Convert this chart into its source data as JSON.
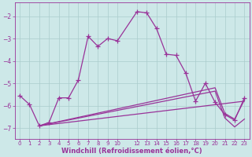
{
  "bg_color": "#cde8e8",
  "line_color": "#993399",
  "grid_color": "#aacccc",
  "xlabel": "Windchill (Refroidissement éolien,°C)",
  "xlabel_color": "#993399",
  "xlim": [
    -0.5,
    23.5
  ],
  "ylim": [
    -7.5,
    -1.4
  ],
  "yticks": [
    -7,
    -6,
    -5,
    -4,
    -3,
    -2
  ],
  "xticks": [
    0,
    1,
    2,
    3,
    4,
    5,
    6,
    7,
    8,
    9,
    10,
    12,
    13,
    14,
    15,
    16,
    17,
    18,
    19,
    20,
    21,
    22,
    23
  ],
  "curve1_x": [
    0,
    1,
    2,
    3,
    4,
    5,
    6,
    7,
    8,
    9,
    10,
    12,
    13,
    14,
    15,
    16,
    17,
    18,
    19,
    20,
    21,
    22,
    23
  ],
  "curve1_y": [
    -5.55,
    -5.95,
    -6.9,
    -6.75,
    -5.65,
    -5.65,
    -4.85,
    -2.9,
    -3.35,
    -3.0,
    -3.1,
    -1.8,
    -1.85,
    -2.55,
    -3.7,
    -3.75,
    -4.55,
    -5.8,
    -5.0,
    -5.85,
    -6.4,
    -6.65,
    -5.65
  ],
  "curve2_x": [
    2,
    23
  ],
  "curve2_y": [
    -6.9,
    -5.8
  ],
  "curve3_x": [
    2,
    20,
    21,
    22,
    23
  ],
  "curve3_y": [
    -6.9,
    -5.2,
    -6.35,
    -6.6,
    -5.75
  ],
  "curve4_x": [
    2,
    20,
    21,
    22,
    23
  ],
  "curve4_y": [
    -6.9,
    -5.35,
    -6.55,
    -6.95,
    -6.6
  ],
  "marker_size": 4,
  "line_width": 0.9
}
